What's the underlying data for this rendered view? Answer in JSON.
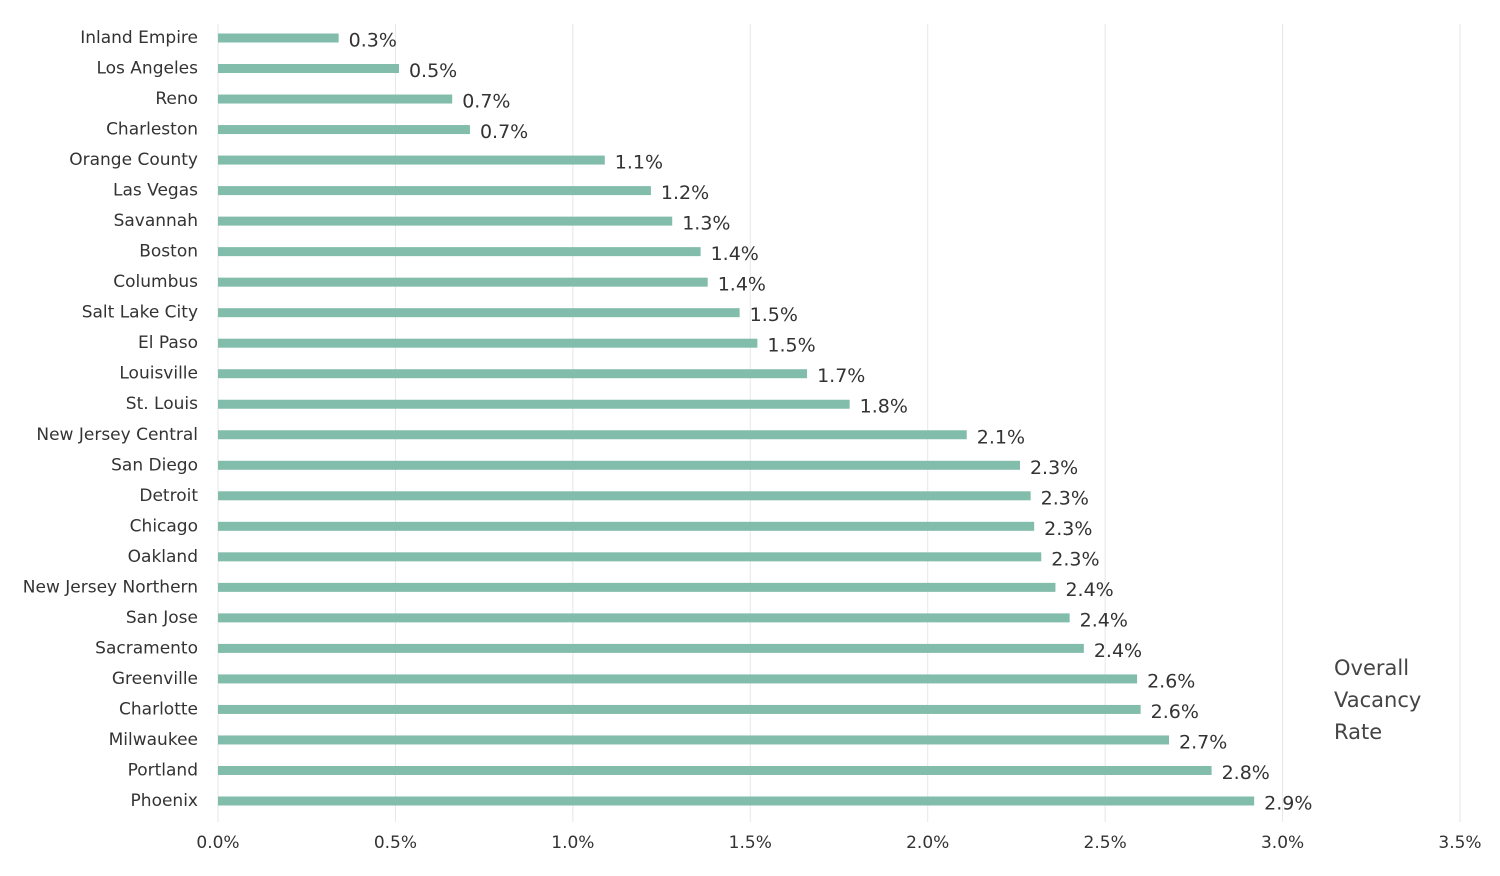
{
  "chart_data": {
    "type": "bar",
    "orientation": "horizontal",
    "categories": [
      "Inland Empire",
      "Los Angeles",
      "Reno",
      "Charleston",
      "Orange County",
      "Las Vegas",
      "Savannah",
      "Boston",
      "Columbus",
      "Salt Lake City",
      "El Paso",
      "Louisville",
      "St. Louis",
      "New Jersey Central",
      "San Diego",
      "Detroit",
      "Chicago",
      "Oakland",
      "New Jersey Northern",
      "San Jose",
      "Sacramento",
      "Greenville",
      "Charlotte",
      "Milwaukee",
      "Portland",
      "Phoenix"
    ],
    "series": [
      {
        "name": "Overall Vacancy Rate",
        "color": "#82bcab",
        "values": [
          0.34,
          0.51,
          0.66,
          0.71,
          1.09,
          1.22,
          1.28,
          1.36,
          1.38,
          1.47,
          1.52,
          1.66,
          1.78,
          2.11,
          2.26,
          2.29,
          2.3,
          2.32,
          2.36,
          2.4,
          2.44,
          2.59,
          2.6,
          2.68,
          2.8,
          2.92
        ],
        "value_labels": [
          "0.3%",
          "0.5%",
          "0.7%",
          "0.7%",
          "1.1%",
          "1.2%",
          "1.3%",
          "1.4%",
          "1.4%",
          "1.5%",
          "1.5%",
          "1.7%",
          "1.8%",
          "2.1%",
          "2.3%",
          "2.3%",
          "2.3%",
          "2.3%",
          "2.4%",
          "2.4%",
          "2.4%",
          "2.6%",
          "2.6%",
          "2.7%",
          "2.8%",
          "2.9%"
        ]
      }
    ],
    "xlim": [
      0,
      3.5
    ],
    "xticks": [
      {
        "value": 0,
        "label": "0.0%"
      },
      {
        "value": 0.5,
        "label": "0.5%"
      },
      {
        "value": 1,
        "label": "1.0%"
      },
      {
        "value": 1.5,
        "label": "1.5%"
      },
      {
        "value": 2,
        "label": "2.0%"
      },
      {
        "value": 2.5,
        "label": "2.5%"
      },
      {
        "value": 3,
        "label": "3.0%"
      },
      {
        "value": 3.5,
        "label": "3.5%"
      }
    ],
    "grid": true
  }
}
